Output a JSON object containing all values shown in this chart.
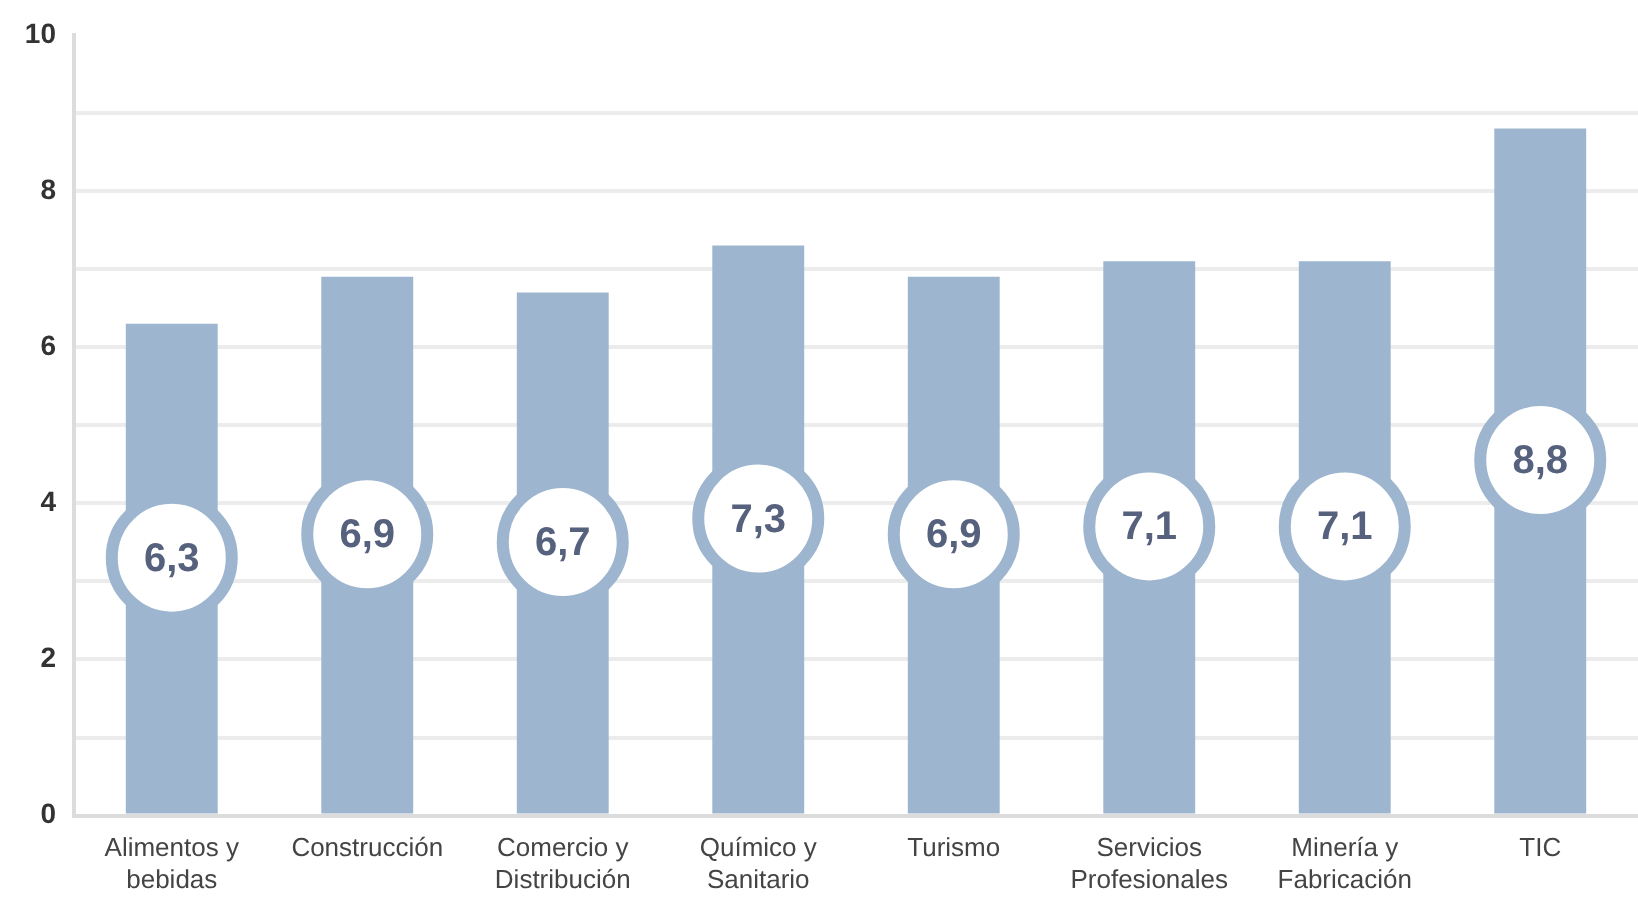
{
  "chart_data": {
    "type": "bar",
    "categories": [
      "Alimentos y bebidas",
      "Construcción",
      "Comercio y Distribución",
      "Químico y Sanitario",
      "Turismo",
      "Servicios Profesionales",
      "Minería y Fabricación",
      "TIC"
    ],
    "values": [
      6.3,
      6.9,
      6.7,
      7.3,
      6.9,
      7.1,
      7.1,
      8.8
    ],
    "value_labels": [
      "6,3",
      "6,9",
      "6,7",
      "7,3",
      "6,9",
      "7,1",
      "7,1",
      "8,8"
    ],
    "color": "#9db5ce",
    "ylim": [
      0,
      10
    ],
    "yticks": [
      0,
      {
        "value": 1,
        "label": null
      },
      2,
      {
        "value": 3,
        "label": null
      },
      4,
      {
        "value": 5,
        "label": null
      },
      6,
      {
        "value": 7,
        "label": null
      },
      8,
      {
        "value": 9,
        "label": null
      },
      10
    ],
    "grid": "y"
  }
}
